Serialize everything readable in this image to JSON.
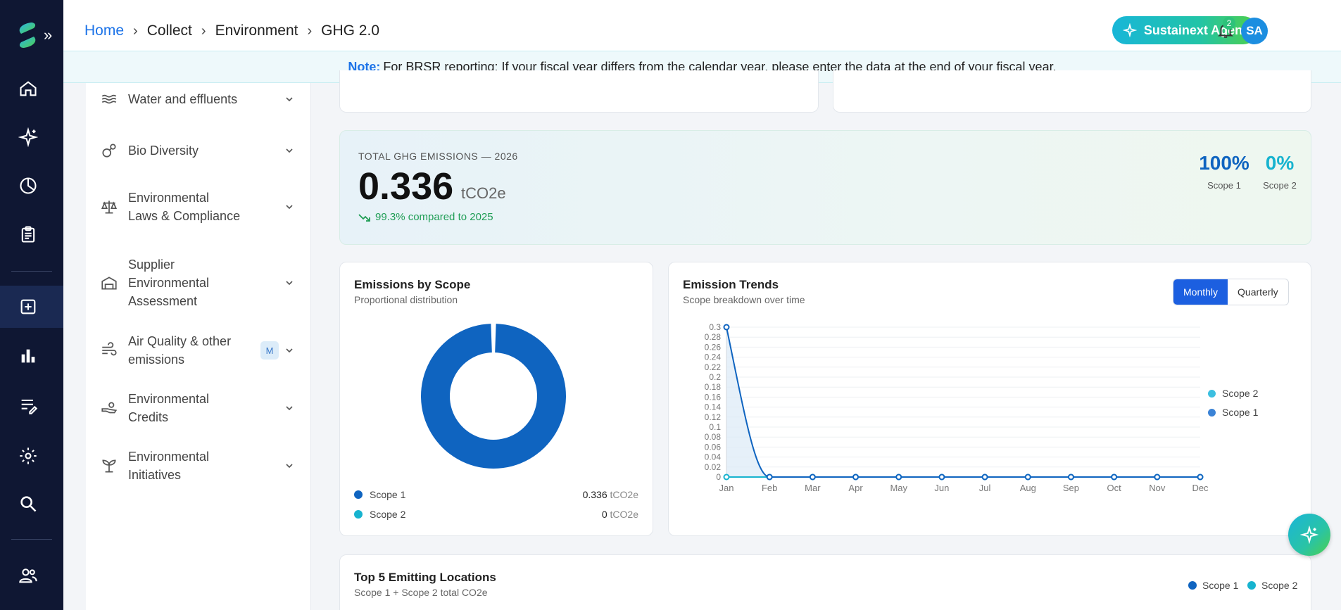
{
  "header": {
    "breadcrumb": [
      "Home",
      "Collect",
      "Environment",
      "GHG 2.0"
    ],
    "agent_label": "Sustainext Agent",
    "notification_count": "2",
    "avatar_initials": "SA"
  },
  "note": {
    "label": "Note:",
    "text": "For BRSR reporting: If your fiscal year differs from the calendar year, please enter the data at the end of your fiscal year."
  },
  "sidebar": {
    "items": [
      {
        "label": "Water and effluents",
        "icon": "water-icon"
      },
      {
        "label": "Bio Diversity",
        "icon": "biodiversity-icon"
      },
      {
        "label": "Environmental Laws & Compliance",
        "icon": "scale-icon"
      },
      {
        "label": "Supplier Environmental Assessment",
        "icon": "factory-icon"
      },
      {
        "label": "Air Quality & other emissions",
        "icon": "wind-icon",
        "badge": "M"
      },
      {
        "label": "Environmental Credits",
        "icon": "credits-hand-icon"
      },
      {
        "label": "Environmental Initiatives",
        "icon": "sprout-icon"
      }
    ]
  },
  "total": {
    "label": "TOTAL GHG EMISSIONS — 2026",
    "value": "0.336",
    "unit": "tCO2e",
    "comparison": "99.3% compared to 2025",
    "scope1_pct": "100%",
    "scope1_label": "Scope 1",
    "scope2_pct": "0%",
    "scope2_label": "Scope 2"
  },
  "scope_card": {
    "title": "Emissions by Scope",
    "subtitle": "Proportional distribution",
    "rows": [
      {
        "name": "Scope 1",
        "value": "0.336",
        "unit": "tCO2e",
        "color": "#0f64c0"
      },
      {
        "name": "Scope 2",
        "value": "0",
        "unit": "tCO2e",
        "color": "#17b3cf"
      }
    ]
  },
  "trend_card": {
    "title": "Emission Trends",
    "subtitle": "Scope breakdown over time",
    "toggle": [
      "Monthly",
      "Quarterly"
    ],
    "legend": [
      {
        "name": "Scope 2",
        "color": "#3cbfe0"
      },
      {
        "name": "Scope 1",
        "color": "#3b83d6"
      }
    ]
  },
  "top_card": {
    "title": "Top 5 Emitting Locations",
    "subtitle": "Scope 1 + Scope 2 total CO2e",
    "legend": [
      {
        "name": "Scope 1",
        "color": "#0f64c0"
      },
      {
        "name": "Scope 2",
        "color": "#17b3cf"
      }
    ]
  },
  "chart_data": [
    {
      "type": "pie",
      "title": "Emissions by Scope",
      "categories": [
        "Scope 1",
        "Scope 2"
      ],
      "values": [
        0.336,
        0
      ],
      "colors": [
        "#0f64c0",
        "#17b3cf"
      ],
      "donut": true
    },
    {
      "type": "line",
      "title": "Emission Trends",
      "x": [
        "Jan",
        "Feb",
        "Mar",
        "Apr",
        "May",
        "Jun",
        "Jul",
        "Aug",
        "Sep",
        "Oct",
        "Nov",
        "Dec"
      ],
      "yticks": [
        "0",
        "0.02",
        "0.04",
        "0.06",
        "0.08",
        "0.1",
        "0.12",
        "0.14",
        "0.16",
        "0.18",
        "0.2",
        "0.22",
        "0.24",
        "0.26",
        "0.28",
        "0.3"
      ],
      "ylim": [
        0,
        0.3
      ],
      "series": [
        {
          "name": "Scope 1",
          "values": [
            0.3,
            0,
            0,
            0,
            0,
            0,
            0,
            0,
            0,
            0,
            0,
            0
          ],
          "color": "#0f64c0"
        },
        {
          "name": "Scope 2",
          "values": [
            0,
            0,
            0,
            0,
            0,
            0,
            0,
            0,
            0,
            0,
            0,
            0
          ],
          "color": "#17b3cf"
        }
      ],
      "legend": "right",
      "grid": true
    }
  ]
}
